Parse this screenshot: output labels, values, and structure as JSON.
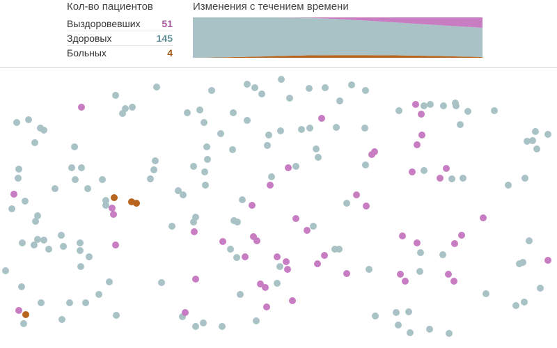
{
  "stats": {
    "title": "Кол-во пациентов",
    "rows": [
      {
        "label": "Выздоровевших",
        "value": "51"
      },
      {
        "label": "Здоровых",
        "value": "145"
      },
      {
        "label": "Больных",
        "value": "4"
      }
    ]
  },
  "timeline": {
    "title": "Изменения с течением времени"
  },
  "colors": {
    "recovered": "#c87dc3",
    "healthy": "#a8c2c6",
    "sick": "#b8651e"
  },
  "chart_data": {
    "type": "area",
    "stacked": true,
    "series_order_bottom_to_top": [
      "sick",
      "healthy",
      "recovered"
    ],
    "x": [
      0,
      0.1,
      0.2,
      0.3,
      0.4,
      0.5,
      0.6,
      0.7,
      0.8,
      0.9,
      1.0
    ],
    "series": [
      {
        "key": "sick",
        "values": [
          0,
          2,
          5,
          9,
          12,
          13,
          13,
          12,
          10,
          7,
          4
        ]
      },
      {
        "key": "healthy",
        "values": [
          200,
          198,
          195,
          191,
          186,
          179,
          171,
          163,
          156,
          150,
          145
        ]
      },
      {
        "key": "recovered",
        "values": [
          0,
          0,
          0,
          0,
          2,
          8,
          16,
          25,
          34,
          43,
          51
        ]
      }
    ],
    "total": 200
  },
  "simulation": {
    "points": [
      {
        "s": "recovered",
        "x": 117,
        "y": 154
      },
      {
        "s": "healthy",
        "x": 166,
        "y": 137
      },
      {
        "s": "healthy",
        "x": 225,
        "y": 125
      },
      {
        "s": "healthy",
        "x": 24,
        "y": 176
      },
      {
        "s": "healthy",
        "x": 41,
        "y": 172
      },
      {
        "s": "healthy",
        "x": 58,
        "y": 184
      },
      {
        "s": "healthy",
        "x": 63,
        "y": 187
      },
      {
        "s": "healthy",
        "x": 50,
        "y": 205
      },
      {
        "s": "healthy",
        "x": 107,
        "y": 211
      },
      {
        "s": "healthy",
        "x": 180,
        "y": 156
      },
      {
        "s": "healthy",
        "x": 190,
        "y": 154
      },
      {
        "s": "healthy",
        "x": 176,
        "y": 163
      },
      {
        "s": "healthy",
        "x": 27,
        "y": 243
      },
      {
        "s": "healthy",
        "x": 26,
        "y": 256
      },
      {
        "s": "healthy",
        "x": 103,
        "y": 241
      },
      {
        "s": "healthy",
        "x": 117,
        "y": 241
      },
      {
        "s": "healthy",
        "x": 108,
        "y": 258
      },
      {
        "s": "healthy",
        "x": 79,
        "y": 271
      },
      {
        "s": "healthy",
        "x": 126,
        "y": 271
      },
      {
        "s": "healthy",
        "x": 147,
        "y": 258
      },
      {
        "s": "healthy",
        "x": 223,
        "y": 231
      },
      {
        "s": "healthy",
        "x": 221,
        "y": 244
      },
      {
        "s": "healthy",
        "x": 216,
        "y": 257
      },
      {
        "s": "recovered",
        "x": 20,
        "y": 279
      },
      {
        "s": "healthy",
        "x": 36,
        "y": 289
      },
      {
        "s": "healthy",
        "x": 17,
        "y": 300
      },
      {
        "s": "healthy",
        "x": 54,
        "y": 310
      },
      {
        "s": "healthy",
        "x": 51,
        "y": 318
      },
      {
        "s": "healthy",
        "x": 152,
        "y": 288
      },
      {
        "s": "healthy",
        "x": 152,
        "y": 295
      },
      {
        "s": "sick",
        "x": 164,
        "y": 284
      },
      {
        "s": "sick",
        "x": 189,
        "y": 290
      },
      {
        "s": "sick",
        "x": 196,
        "y": 292
      },
      {
        "s": "recovered",
        "x": 161,
        "y": 299
      },
      {
        "s": "recovered",
        "x": 163,
        "y": 308
      },
      {
        "s": "healthy",
        "x": 32,
        "y": 349
      },
      {
        "s": "healthy",
        "x": 54,
        "y": 344
      },
      {
        "s": "healthy",
        "x": 63,
        "y": 345
      },
      {
        "s": "healthy",
        "x": 49,
        "y": 352
      },
      {
        "s": "healthy",
        "x": 70,
        "y": 358
      },
      {
        "s": "healthy",
        "x": 88,
        "y": 338
      },
      {
        "s": "healthy",
        "x": 91,
        "y": 354
      },
      {
        "s": "healthy",
        "x": 115,
        "y": 349
      },
      {
        "s": "healthy",
        "x": 115,
        "y": 360
      },
      {
        "s": "healthy",
        "x": 128,
        "y": 369
      },
      {
        "s": "healthy",
        "x": 116,
        "y": 383
      },
      {
        "s": "recovered",
        "x": 166,
        "y": 352
      },
      {
        "s": "healthy",
        "x": 8,
        "y": 389
      },
      {
        "s": "healthy",
        "x": 31,
        "y": 412
      },
      {
        "s": "healthy",
        "x": 59,
        "y": 435
      },
      {
        "s": "healthy",
        "x": 100,
        "y": 435
      },
      {
        "s": "healthy",
        "x": 123,
        "y": 435
      },
      {
        "s": "healthy",
        "x": 142,
        "y": 423
      },
      {
        "s": "healthy",
        "x": 157,
        "y": 405
      },
      {
        "s": "recovered",
        "x": 27,
        "y": 446
      },
      {
        "s": "sick",
        "x": 37,
        "y": 452
      },
      {
        "s": "healthy",
        "x": 34,
        "y": 465
      },
      {
        "s": "healthy",
        "x": 89,
        "y": 459
      },
      {
        "s": "healthy",
        "x": 167,
        "y": 453
      },
      {
        "s": "healthy",
        "x": 232,
        "y": 406
      },
      {
        "s": "healthy",
        "x": 247,
        "y": 325
      },
      {
        "s": "healthy",
        "x": 256,
        "y": 274
      },
      {
        "s": "healthy",
        "x": 263,
        "y": 280
      },
      {
        "s": "healthy",
        "x": 278,
        "y": 319
      },
      {
        "s": "healthy",
        "x": 281,
        "y": 312
      },
      {
        "s": "recovered",
        "x": 279,
        "y": 333
      },
      {
        "s": "healthy",
        "x": 278,
        "y": 239
      },
      {
        "s": "healthy",
        "x": 294,
        "y": 247
      },
      {
        "s": "healthy",
        "x": 295,
        "y": 266
      },
      {
        "s": "healthy",
        "x": 298,
        "y": 229
      },
      {
        "s": "healthy",
        "x": 297,
        "y": 211
      },
      {
        "s": "healthy",
        "x": 293,
        "y": 176
      },
      {
        "s": "healthy",
        "x": 287,
        "y": 158
      },
      {
        "s": "healthy",
        "x": 269,
        "y": 162
      },
      {
        "s": "healthy",
        "x": 304,
        "y": 130
      },
      {
        "s": "healthy",
        "x": 317,
        "y": 192
      },
      {
        "s": "healthy",
        "x": 335,
        "y": 162
      },
      {
        "s": "healthy",
        "x": 334,
        "y": 215
      },
      {
        "s": "healthy",
        "x": 355,
        "y": 173
      },
      {
        "s": "healthy",
        "x": 355,
        "y": 121
      },
      {
        "s": "healthy",
        "x": 366,
        "y": 126
      },
      {
        "s": "healthy",
        "x": 376,
        "y": 135
      },
      {
        "s": "healthy",
        "x": 404,
        "y": 114
      },
      {
        "s": "healthy",
        "x": 416,
        "y": 141
      },
      {
        "s": "healthy",
        "x": 386,
        "y": 194
      },
      {
        "s": "healthy",
        "x": 403,
        "y": 188
      },
      {
        "s": "healthy",
        "x": 384,
        "y": 209
      },
      {
        "s": "healthy",
        "x": 433,
        "y": 186
      },
      {
        "s": "healthy",
        "x": 445,
        "y": 184
      },
      {
        "s": "healthy",
        "x": 444,
        "y": 127
      },
      {
        "s": "healthy",
        "x": 467,
        "y": 126
      },
      {
        "s": "healthy",
        "x": 488,
        "y": 145
      },
      {
        "s": "recovered",
        "x": 462,
        "y": 170
      },
      {
        "s": "healthy",
        "x": 483,
        "y": 183
      },
      {
        "s": "healthy",
        "x": 454,
        "y": 214
      },
      {
        "s": "healthy",
        "x": 457,
        "y": 226
      },
      {
        "s": "recovered",
        "x": 414,
        "y": 241
      },
      {
        "s": "healthy",
        "x": 425,
        "y": 239
      },
      {
        "s": "healthy",
        "x": 390,
        "y": 254
      },
      {
        "s": "recovered",
        "x": 388,
        "y": 266
      },
      {
        "s": "healthy",
        "x": 348,
        "y": 287
      },
      {
        "s": "recovered",
        "x": 362,
        "y": 295
      },
      {
        "s": "healthy",
        "x": 336,
        "y": 317
      },
      {
        "s": "healthy",
        "x": 341,
        "y": 319
      },
      {
        "s": "recovered",
        "x": 364,
        "y": 340
      },
      {
        "s": "recovered",
        "x": 369,
        "y": 346
      },
      {
        "s": "recovered",
        "x": 320,
        "y": 347
      },
      {
        "s": "healthy",
        "x": 331,
        "y": 358
      },
      {
        "s": "healthy",
        "x": 340,
        "y": 370
      },
      {
        "s": "recovered",
        "x": 352,
        "y": 369
      },
      {
        "s": "recovered",
        "x": 398,
        "y": 369
      },
      {
        "s": "recovered",
        "x": 411,
        "y": 376
      },
      {
        "s": "healthy",
        "x": 402,
        "y": 383
      },
      {
        "s": "recovered",
        "x": 413,
        "y": 387
      },
      {
        "s": "recovered",
        "x": 425,
        "y": 314
      },
      {
        "s": "recovered",
        "x": 441,
        "y": 331
      },
      {
        "s": "healthy",
        "x": 450,
        "y": 325
      },
      {
        "s": "recovered",
        "x": 466,
        "y": 367
      },
      {
        "s": "recovered",
        "x": 456,
        "y": 379
      },
      {
        "s": "healthy",
        "x": 481,
        "y": 358
      },
      {
        "s": "healthy",
        "x": 487,
        "y": 358
      },
      {
        "s": "recovered",
        "x": 498,
        "y": 393
      },
      {
        "s": "healthy",
        "x": 530,
        "y": 387
      },
      {
        "s": "healthy",
        "x": 398,
        "y": 407
      },
      {
        "s": "recovered",
        "x": 374,
        "y": 408
      },
      {
        "s": "recovered",
        "x": 381,
        "y": 413
      },
      {
        "s": "recovered",
        "x": 420,
        "y": 432
      },
      {
        "s": "recovered",
        "x": 383,
        "y": 441
      },
      {
        "s": "healthy",
        "x": 345,
        "y": 423
      },
      {
        "s": "recovered",
        "x": 281,
        "y": 401
      },
      {
        "s": "healthy",
        "x": 262,
        "y": 455
      },
      {
        "s": "recovered",
        "x": 266,
        "y": 449
      },
      {
        "s": "healthy",
        "x": 281,
        "y": 469
      },
      {
        "s": "healthy",
        "x": 292,
        "y": 464
      },
      {
        "s": "healthy",
        "x": 319,
        "y": 469
      },
      {
        "s": "healthy",
        "x": 368,
        "y": 461
      },
      {
        "s": "healthy",
        "x": 505,
        "y": 122
      },
      {
        "s": "healthy",
        "x": 525,
        "y": 130
      },
      {
        "s": "healthy",
        "x": 524,
        "y": 184
      },
      {
        "s": "recovered",
        "x": 538,
        "y": 218
      },
      {
        "s": "recovered",
        "x": 534,
        "y": 222
      },
      {
        "s": "healthy",
        "x": 525,
        "y": 237
      },
      {
        "s": "recovered",
        "x": 512,
        "y": 280
      },
      {
        "s": "recovered",
        "x": 526,
        "y": 296
      },
      {
        "s": "healthy",
        "x": 498,
        "y": 292
      },
      {
        "s": "healthy",
        "x": 539,
        "y": 454
      },
      {
        "s": "healthy",
        "x": 573,
        "y": 159
      },
      {
        "s": "recovered",
        "x": 597,
        "y": 150
      },
      {
        "s": "healthy",
        "x": 609,
        "y": 152
      },
      {
        "s": "recovered",
        "x": 605,
        "y": 164
      },
      {
        "s": "healthy",
        "x": 618,
        "y": 150
      },
      {
        "s": "healthy",
        "x": 637,
        "y": 152
      },
      {
        "s": "healthy",
        "x": 654,
        "y": 148
      },
      {
        "s": "healthy",
        "x": 655,
        "y": 152
      },
      {
        "s": "healthy",
        "x": 672,
        "y": 160
      },
      {
        "s": "healthy",
        "x": 661,
        "y": 179
      },
      {
        "s": "healthy",
        "x": 710,
        "y": 159
      },
      {
        "s": "recovered",
        "x": 606,
        "y": 194
      },
      {
        "s": "recovered",
        "x": 599,
        "y": 208
      },
      {
        "s": "recovered",
        "x": 592,
        "y": 247
      },
      {
        "s": "healthy",
        "x": 609,
        "y": 245
      },
      {
        "s": "recovered",
        "x": 641,
        "y": 242
      },
      {
        "s": "recovered",
        "x": 632,
        "y": 256
      },
      {
        "s": "healthy",
        "x": 649,
        "y": 257
      },
      {
        "s": "healthy",
        "x": 665,
        "y": 256
      },
      {
        "s": "healthy",
        "x": 730,
        "y": 266
      },
      {
        "s": "healthy",
        "x": 754,
        "y": 256
      },
      {
        "s": "healthy",
        "x": 769,
        "y": 189
      },
      {
        "s": "healthy",
        "x": 787,
        "y": 193
      },
      {
        "s": "healthy",
        "x": 757,
        "y": 203
      },
      {
        "s": "healthy",
        "x": 765,
        "y": 202
      },
      {
        "s": "healthy",
        "x": 771,
        "y": 214
      },
      {
        "s": "recovered",
        "x": 694,
        "y": 313
      },
      {
        "s": "recovered",
        "x": 578,
        "y": 339
      },
      {
        "s": "recovered",
        "x": 599,
        "y": 349
      },
      {
        "s": "healthy",
        "x": 604,
        "y": 363
      },
      {
        "s": "recovered",
        "x": 663,
        "y": 338
      },
      {
        "s": "recovered",
        "x": 653,
        "y": 350
      },
      {
        "s": "healthy",
        "x": 636,
        "y": 366
      },
      {
        "s": "healthy",
        "x": 760,
        "y": 346
      },
      {
        "s": "healthy",
        "x": 746,
        "y": 379
      },
      {
        "s": "healthy",
        "x": 751,
        "y": 377
      },
      {
        "s": "recovered",
        "x": 787,
        "y": 374
      },
      {
        "s": "recovered",
        "x": 575,
        "y": 394
      },
      {
        "s": "recovered",
        "x": 582,
        "y": 404
      },
      {
        "s": "recovered",
        "x": 644,
        "y": 394
      },
      {
        "s": "recovered",
        "x": 652,
        "y": 404
      },
      {
        "s": "healthy",
        "x": 603,
        "y": 390
      },
      {
        "s": "healthy",
        "x": 698,
        "y": 422
      },
      {
        "s": "healthy",
        "x": 776,
        "y": 414
      },
      {
        "s": "healthy",
        "x": 741,
        "y": 439
      },
      {
        "s": "healthy",
        "x": 753,
        "y": 434
      },
      {
        "s": "healthy",
        "x": 569,
        "y": 449
      },
      {
        "s": "healthy",
        "x": 587,
        "y": 448
      },
      {
        "s": "healthy",
        "x": 572,
        "y": 467
      },
      {
        "s": "healthy",
        "x": 589,
        "y": 478
      },
      {
        "s": "healthy",
        "x": 617,
        "y": 473
      },
      {
        "s": "healthy",
        "x": 645,
        "y": 479
      }
    ]
  }
}
